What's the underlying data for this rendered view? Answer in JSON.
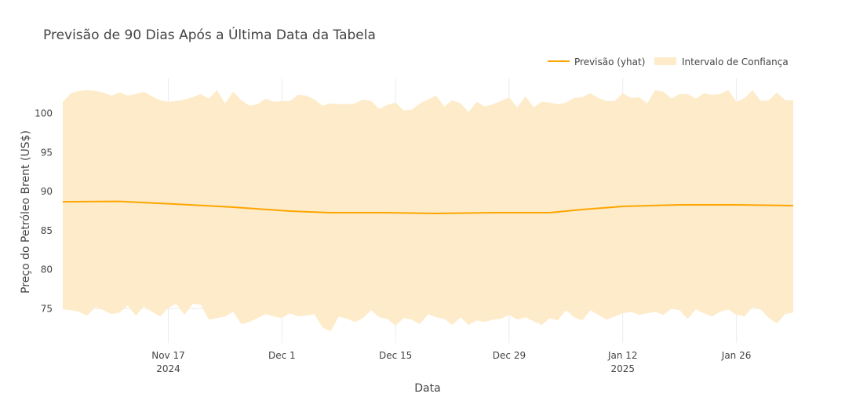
{
  "colors": {
    "line": "#ffa500",
    "band": "#fdebc9",
    "grid": "#ececec",
    "text": "#444444"
  },
  "chart_data": {
    "type": "line",
    "title": "Previsão de 90 Dias Após a Última Data da Tabela",
    "xlabel": "Data",
    "ylabel": "Preço do Petróleo Brent (US$)",
    "legend": {
      "placement": "top-right",
      "items": [
        {
          "label": "Previsão (yhat)",
          "kind": "line"
        },
        {
          "label": "Intervalo de Confiança",
          "kind": "band"
        }
      ]
    },
    "grid": true,
    "x_range": [
      "2024-11-04",
      "2025-02-02"
    ],
    "ylim": [
      70.6,
      104.5
    ],
    "x_ticks": [
      {
        "date": "2024-11-17",
        "label": "Nov 17",
        "sublabel": "2024"
      },
      {
        "date": "2024-12-01",
        "label": "Dec 1",
        "sublabel": ""
      },
      {
        "date": "2024-12-15",
        "label": "Dec 15",
        "sublabel": ""
      },
      {
        "date": "2024-12-29",
        "label": "Dec 29",
        "sublabel": ""
      },
      {
        "date": "2025-01-12",
        "label": "Jan 12",
        "sublabel": "2025"
      },
      {
        "date": "2025-01-26",
        "label": "Jan 26",
        "sublabel": ""
      }
    ],
    "y_ticks": [
      75,
      80,
      85,
      90,
      95,
      100
    ],
    "series": [
      {
        "name": "Previsão (yhat)",
        "x": [
          "2024-11-04",
          "2024-11-11",
          "2024-11-18",
          "2024-11-25",
          "2024-12-02",
          "2024-12-07",
          "2024-12-14",
          "2024-12-20",
          "2024-12-27",
          "2025-01-03",
          "2025-01-07",
          "2025-01-12",
          "2025-01-19",
          "2025-01-26",
          "2025-02-02"
        ],
        "y": [
          88.7,
          88.75,
          88.4,
          88.0,
          87.5,
          87.3,
          87.3,
          87.2,
          87.3,
          87.3,
          87.7,
          88.1,
          88.3,
          88.3,
          88.2
        ]
      },
      {
        "name": "Intervalo de Confiança",
        "x": [
          "2024-11-04",
          "2024-11-05",
          "2024-11-06",
          "2024-11-07",
          "2024-11-08",
          "2024-11-09",
          "2024-11-10",
          "2024-11-11",
          "2024-11-12",
          "2024-11-13",
          "2024-11-14",
          "2024-11-15",
          "2024-11-16",
          "2024-11-17",
          "2024-11-18",
          "2024-11-19",
          "2024-11-20",
          "2024-11-21",
          "2024-11-22",
          "2024-11-23",
          "2024-11-24",
          "2024-11-25",
          "2024-11-26",
          "2024-11-27",
          "2024-11-28",
          "2024-11-29",
          "2024-11-30",
          "2024-12-01",
          "2024-12-02",
          "2024-12-03",
          "2024-12-04",
          "2024-12-05",
          "2024-12-06",
          "2024-12-07",
          "2024-12-08",
          "2024-12-09",
          "2024-12-10",
          "2024-12-11",
          "2024-12-12",
          "2024-12-13",
          "2024-12-14",
          "2024-12-15",
          "2024-12-16",
          "2024-12-17",
          "2024-12-18",
          "2024-12-19",
          "2024-12-20",
          "2024-12-21",
          "2024-12-22",
          "2024-12-23",
          "2024-12-24",
          "2024-12-25",
          "2024-12-26",
          "2024-12-27",
          "2024-12-28",
          "2024-12-29",
          "2024-12-30",
          "2024-12-31",
          "2025-01-01",
          "2025-01-02",
          "2025-01-03",
          "2025-01-04",
          "2025-01-05",
          "2025-01-06",
          "2025-01-07",
          "2025-01-08",
          "2025-01-09",
          "2025-01-10",
          "2025-01-11",
          "2025-01-12",
          "2025-01-13",
          "2025-01-14",
          "2025-01-15",
          "2025-01-16",
          "2025-01-17",
          "2025-01-18",
          "2025-01-19",
          "2025-01-20",
          "2025-01-21",
          "2025-01-22",
          "2025-01-23",
          "2025-01-24",
          "2025-01-25",
          "2025-01-26",
          "2025-01-27",
          "2025-01-28",
          "2025-01-29",
          "2025-01-30",
          "2025-01-31",
          "2025-02-01",
          "2025-02-02"
        ],
        "upper": [
          101.5,
          102.6,
          102.9,
          103.0,
          102.9,
          102.7,
          102.3,
          102.7,
          102.3,
          102.5,
          102.8,
          102.2,
          101.7,
          101.5,
          101.6,
          101.8,
          102.1,
          102.5,
          101.9,
          103.0,
          101.3,
          102.8,
          101.7,
          101.0,
          101.2,
          101.9,
          101.5,
          101.6,
          101.6,
          102.4,
          102.3,
          101.8,
          101.0,
          101.3,
          101.2,
          101.2,
          101.3,
          101.8,
          101.6,
          100.6,
          101.1,
          101.4,
          100.4,
          100.5,
          101.3,
          101.8,
          102.3,
          100.9,
          101.7,
          101.3,
          100.2,
          101.5,
          100.9,
          101.2,
          101.6,
          102.1,
          100.8,
          102.2,
          100.8,
          101.5,
          101.4,
          101.2,
          101.4,
          102.0,
          102.1,
          102.6,
          102.0,
          101.6,
          101.6,
          102.6,
          102.0,
          102.1,
          101.3,
          103.0,
          102.8,
          101.9,
          102.5,
          102.5,
          101.9,
          102.6,
          102.4,
          102.5,
          103.0,
          101.5,
          102.0,
          103.0,
          101.6,
          101.7,
          102.7,
          101.7,
          101.7
        ],
        "lower": [
          74.9,
          74.8,
          74.6,
          74.1,
          75.2,
          74.8,
          74.3,
          74.5,
          75.4,
          74.1,
          75.3,
          74.6,
          74.0,
          75.1,
          75.6,
          74.2,
          75.6,
          75.5,
          73.6,
          73.8,
          74.0,
          74.6,
          73.0,
          73.3,
          73.8,
          74.3,
          74.0,
          73.8,
          74.4,
          74.0,
          74.1,
          74.3,
          72.6,
          72.1,
          74.0,
          73.7,
          73.3,
          73.8,
          74.8,
          73.9,
          73.7,
          72.8,
          73.8,
          73.6,
          73.0,
          74.3,
          73.9,
          73.7,
          72.9,
          73.9,
          72.9,
          73.5,
          73.3,
          73.6,
          73.7,
          74.2,
          73.6,
          73.9,
          73.4,
          72.9,
          73.8,
          73.5,
          74.8,
          73.9,
          73.5,
          74.8,
          74.2,
          73.6,
          74.0,
          74.4,
          74.6,
          74.2,
          74.4,
          74.6,
          74.2,
          75.0,
          74.8,
          73.7,
          74.9,
          74.4,
          74.0,
          74.6,
          74.9,
          74.2,
          74.0,
          75.2,
          74.9,
          73.8,
          73.1,
          74.3,
          74.5
        ]
      }
    ]
  }
}
